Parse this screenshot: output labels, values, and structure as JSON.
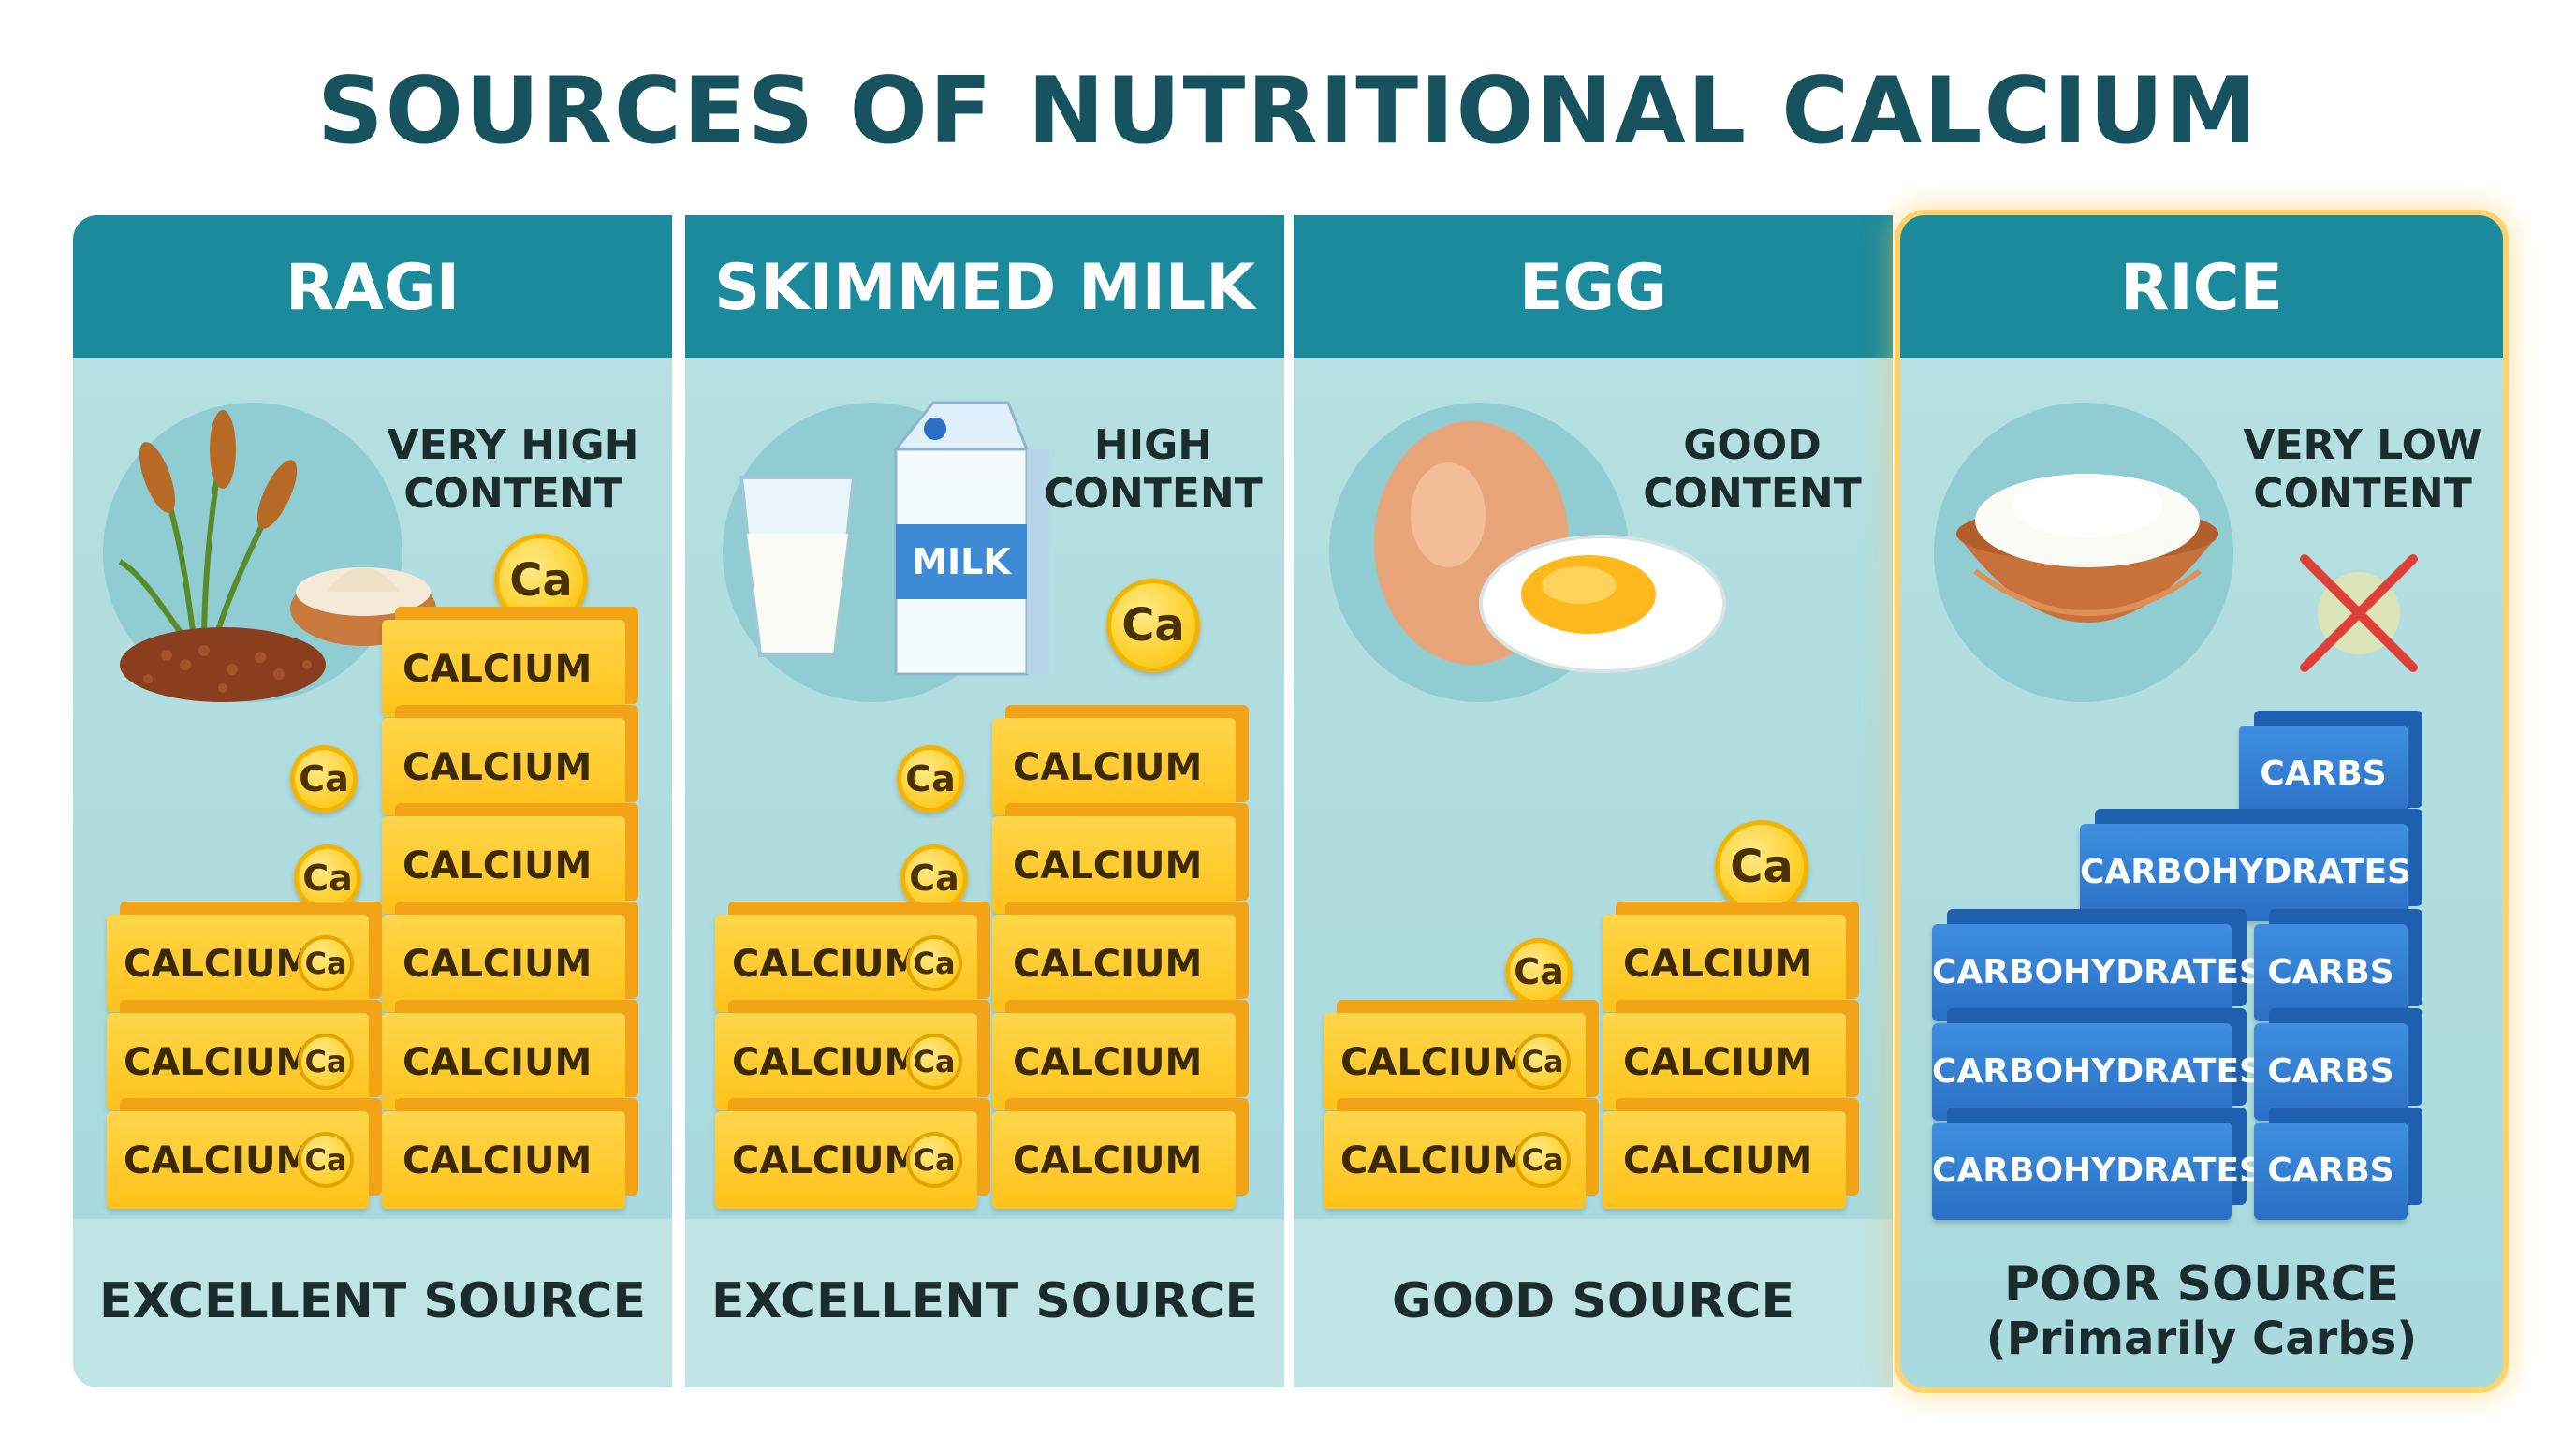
{
  "title": "SOURCES OF NUTRITIONAL CALCIUM",
  "panels": [
    {
      "name": "RAGI",
      "level_line1": "VERY HIGH",
      "level_line2": "CONTENT",
      "footer": "EXCELLENT SOURCE"
    },
    {
      "name": "SKIMMED MILK",
      "level_line1": "HIGH",
      "level_line2": "CONTENT",
      "footer": "EXCELLENT SOURCE",
      "carton_label": "MILK"
    },
    {
      "name": "EGG",
      "level_line1": "GOOD",
      "level_line2": "CONTENT",
      "footer": "GOOD SOURCE"
    },
    {
      "name": "RICE",
      "level_line1": "VERY LOW",
      "level_line2": "CONTENT",
      "footer": "POOR SOURCE",
      "footer_sub": "(Primarily Carbs)"
    }
  ],
  "labels": {
    "calcium": "CALCIUM",
    "ca": "Ca",
    "carbs": "CARBS",
    "carbohydrates": "CARBOHYDRATES"
  },
  "colors": {
    "title": "#17535f",
    "header": "#1b8a9c",
    "panel_bg": "#bfe4e6",
    "calcium_block": "#ffc21a",
    "carbs_block": "#2a6fc4",
    "highlight": "#ffd36a",
    "cross": "#e0403a"
  }
}
